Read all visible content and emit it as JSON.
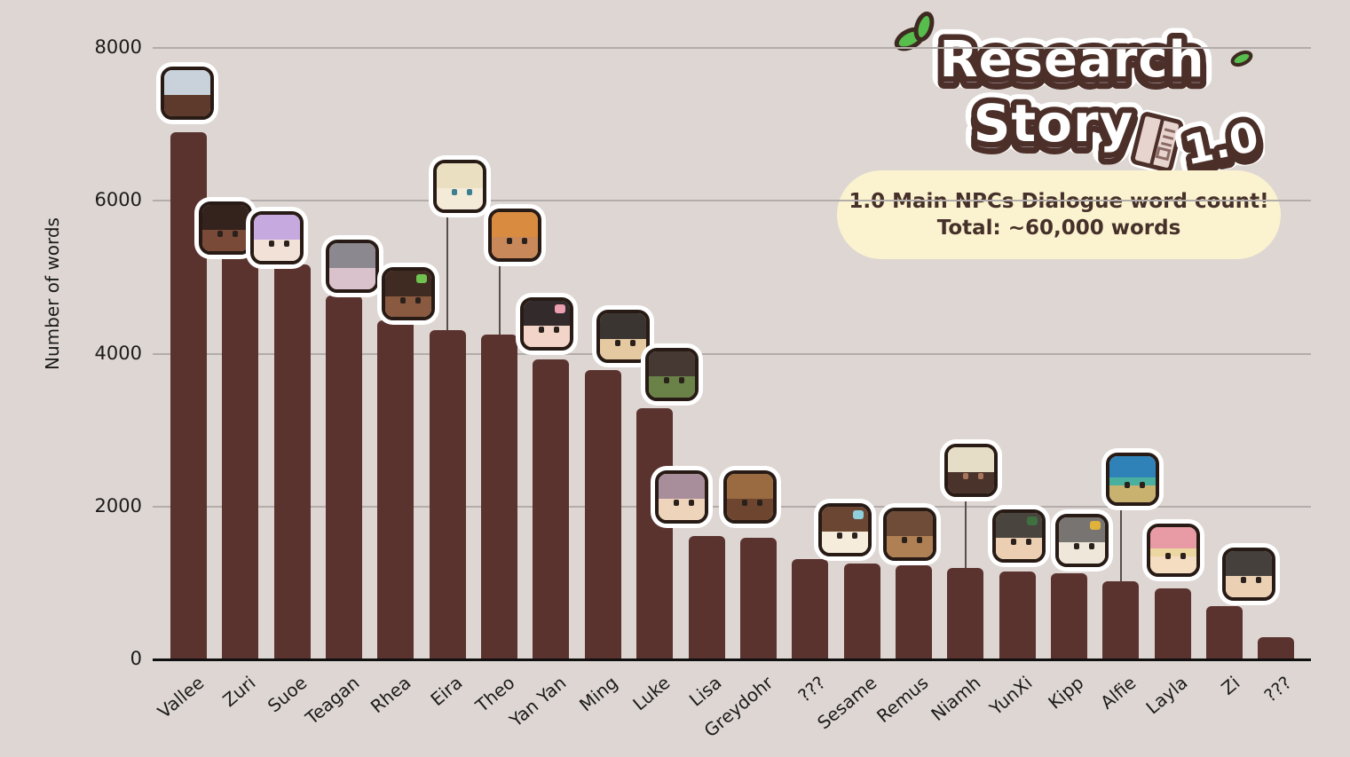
{
  "app": {
    "background_color": "#ded6d2",
    "bar_color": "#5a322e",
    "gridline_color": "#b2acaa",
    "axis_color": "#101010",
    "stem_color": "#56504c"
  },
  "logo": {
    "line1": "Research",
    "line2": "Story",
    "version": "1.0",
    "fill_color": "#ffffff",
    "outline_color": "#4b2f28",
    "shadow_color": "#cabed6",
    "leaf_color": "#57bd4d",
    "book_color": "#e8d4cf"
  },
  "badge": {
    "line1": "1.0 Main NPCs Dialogue word count!",
    "line2": "Total: ~60,000 words",
    "bg_color": "#fbf3cf",
    "text_color": "#46302a"
  },
  "chart_data": {
    "type": "bar",
    "title": "1.0 Main NPCs Dialogue word count! Total: ~60,000 words",
    "xlabel": "",
    "ylabel": "Number of words",
    "ylim": [
      0,
      8000
    ],
    "yticks": [
      0,
      2000,
      4000,
      6000,
      8000
    ],
    "grid": true,
    "legend": false,
    "categories": [
      "Vallee",
      "Zuri",
      "Suoe",
      "Teagan",
      "Rhea",
      "Eira",
      "Theo",
      "Yan Yan",
      "Ming",
      "Luke",
      "Lisa",
      "Greydohr",
      "???",
      "Sesame",
      "Remus",
      "Niamh",
      "YunXi",
      "Kipp",
      "Alfie",
      "Layla",
      "Zi",
      "???"
    ],
    "values": [
      6900,
      5300,
      5170,
      4760,
      4430,
      4310,
      4250,
      3930,
      3780,
      3290,
      1610,
      1590,
      1310,
      1250,
      1230,
      1200,
      1150,
      1130,
      1020,
      930,
      700,
      290
    ]
  },
  "avatars": [
    {
      "present": true,
      "icon": "vallee-snail-dome-avatar",
      "hair": "#c9d2da",
      "skin": "#5e3a2c",
      "eyes": false,
      "raise": 14,
      "dx": -2,
      "stem": false
    },
    {
      "present": true,
      "icon": "zuri-avatar",
      "hair": "#34221c",
      "skin": "#7a4a38",
      "eyes": true,
      "raise": 0,
      "dx": -17,
      "stem": false
    },
    {
      "present": true,
      "icon": "suoe-avatar",
      "hair": "#c6a9de",
      "skin": "#f2e1d6",
      "eyes": true,
      "raise": 0,
      "dx": -17,
      "stem": false
    },
    {
      "present": true,
      "icon": "teagan-framed-pet-avatar",
      "hair": "#8c8890",
      "skin": "#d9c2cc",
      "eyes": false,
      "raise": 3,
      "dx": 9,
      "stem": false
    },
    {
      "present": true,
      "icon": "rhea-avatar",
      "hair": "#3f2b22",
      "skin": "#8a5a40",
      "eyes": true,
      "accent": "#6fc24f",
      "raise": 0,
      "dx": 14,
      "stem": false
    },
    {
      "present": true,
      "icon": "eira-avatar",
      "hair": "#ebdfc1",
      "skin": "#f3ead8",
      "eyes": true,
      "eye_color": "#3d7f90",
      "raise": 132,
      "dx": 14,
      "stem": true
    },
    {
      "present": true,
      "icon": "theo-avatar",
      "hair": "#d98c3f",
      "skin": "#c8885a",
      "eyes": true,
      "raise": 82,
      "dx": 17,
      "stem": true
    },
    {
      "present": true,
      "icon": "yanyan-cow-avatar",
      "hair": "#332b2b",
      "skin": "#f3d4c8",
      "eyes": true,
      "accent": "#eb9fb1",
      "raise": 10,
      "dx": -5,
      "stem": false
    },
    {
      "present": true,
      "icon": "ming-avatar",
      "hair": "#3a3530",
      "skin": "#e5c9a0",
      "eyes": true,
      "raise": 8,
      "dx": 23,
      "stem": false
    },
    {
      "present": true,
      "icon": "luke-goblin-avatar",
      "hair": "#463833",
      "skin": "#6a8248",
      "eyes": true,
      "raise": 8,
      "dx": 19,
      "stem": false
    },
    {
      "present": true,
      "icon": "lisa-avatar",
      "hair": "#a88e9a",
      "skin": "#efd4bc",
      "eyes": true,
      "raise": 14,
      "dx": -28,
      "stem": false
    },
    {
      "present": true,
      "icon": "greydohr-creature-avatar",
      "hair": "#9a6a40",
      "skin": "#6e452e",
      "eyes": true,
      "raise": 16,
      "dx": -9,
      "stem": false
    },
    {
      "present": false
    },
    {
      "present": true,
      "icon": "sesame-goggles-avatar",
      "hair": "#6b4733",
      "skin": "#f5ecdc",
      "eyes": true,
      "accent": "#8ed0dc",
      "raise": 8,
      "dx": -19,
      "stem": false
    },
    {
      "present": true,
      "icon": "remus-goggles-avatar",
      "hair": "#6e4c38",
      "skin": "#b08055",
      "eyes": true,
      "raise": 5,
      "dx": -4,
      "stem": false
    },
    {
      "present": true,
      "icon": "niamh-sheep-avatar",
      "hair": "#e6ddc6",
      "skin": "#4a332a",
      "eyes": true,
      "eye_color": "#a8765c",
      "raise": 80,
      "dx": 6,
      "stem": true
    },
    {
      "present": true,
      "icon": "yunxi-avatar",
      "hair": "#4a443e",
      "skin": "#eccfb2",
      "eyes": true,
      "accent": "#3e7040",
      "raise": 10,
      "dx": 2,
      "stem": false
    },
    {
      "present": true,
      "icon": "kipp-penguin-avatar",
      "hair": "#787471",
      "skin": "#efe8da",
      "eyes": true,
      "accent": "#e0b23c",
      "raise": 7,
      "dx": 15,
      "stem": false
    },
    {
      "present": true,
      "icon": "alfie-bluehat-avatar",
      "hair": "#2e82b8",
      "skin": "#c9b270",
      "eyes": true,
      "band": "#49b0a0",
      "raise": 85,
      "dx": 13,
      "stem": true
    },
    {
      "present": true,
      "icon": "layla-avatar",
      "hair": "#e89ba4",
      "skin": "#f5ddc2",
      "eyes": true,
      "band": "#ecd7a0",
      "raise": 13,
      "dx": 1,
      "stem": false
    },
    {
      "present": true,
      "icon": "zi-avatar",
      "hair": "#45403c",
      "skin": "#ecd0b4",
      "eyes": true,
      "raise": 6,
      "dx": 27,
      "stem": false
    },
    {
      "present": false
    }
  ]
}
